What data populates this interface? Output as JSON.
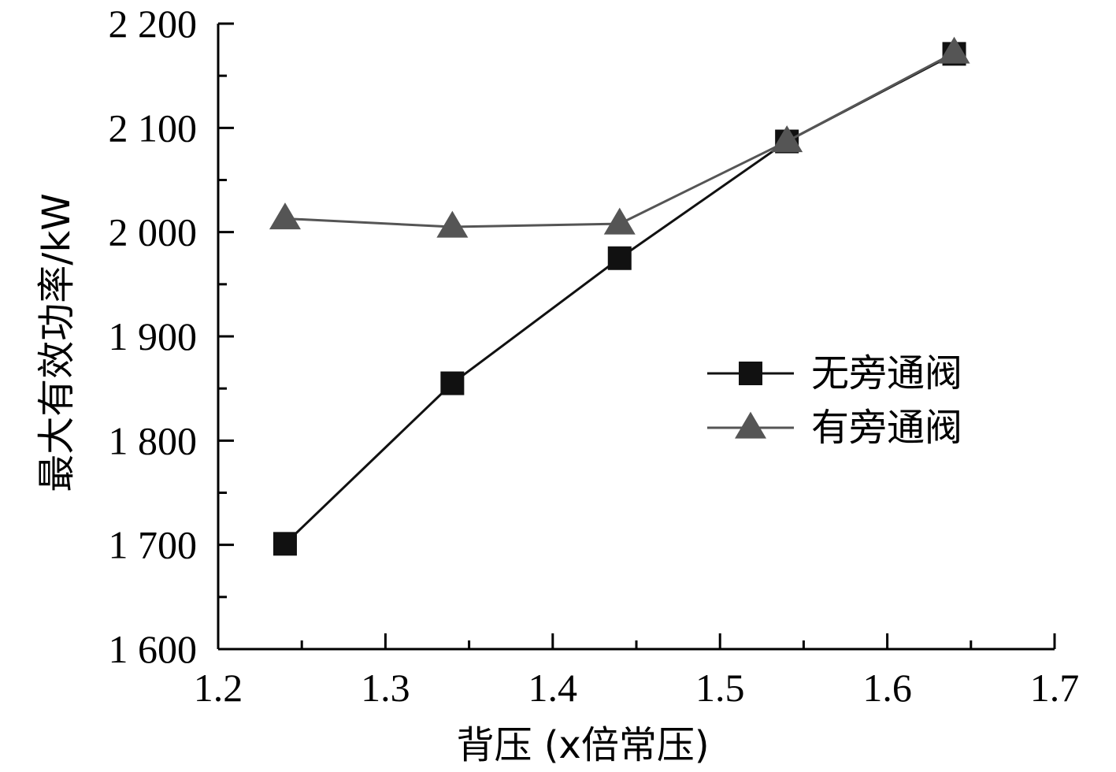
{
  "chart_data": {
    "type": "line",
    "xlabel": "背压 (x倍常压)",
    "ylabel": "最大有效功率/kW",
    "xlim": [
      1.2,
      1.7
    ],
    "ylim": [
      1600,
      2200
    ],
    "xticks": [
      1.2,
      1.3,
      1.4,
      1.5,
      1.6,
      1.7
    ],
    "xtick_labels": [
      "1.2",
      "1.3",
      "1.4",
      "1.5",
      "1.6",
      "1.7"
    ],
    "yticks": [
      1600,
      1700,
      1800,
      1900,
      2000,
      2100,
      2200
    ],
    "ytick_labels": [
      "1 600",
      "1 700",
      "1 800",
      "1 900",
      "2 000",
      "2 100",
      "2 200"
    ],
    "grid": false,
    "legend_position": "right",
    "series": [
      {
        "name": "无旁通阀",
        "marker": "square",
        "color": "#111111",
        "x": [
          1.24,
          1.34,
          1.44,
          1.54,
          1.64
        ],
        "y": [
          1701,
          1855,
          1975,
          2087,
          2171
        ]
      },
      {
        "name": "有旁通阀",
        "marker": "triangle",
        "color": "#555555",
        "x": [
          1.24,
          1.34,
          1.44,
          1.54,
          1.64
        ],
        "y": [
          2013,
          2005,
          2008,
          2087,
          2172
        ]
      }
    ]
  }
}
